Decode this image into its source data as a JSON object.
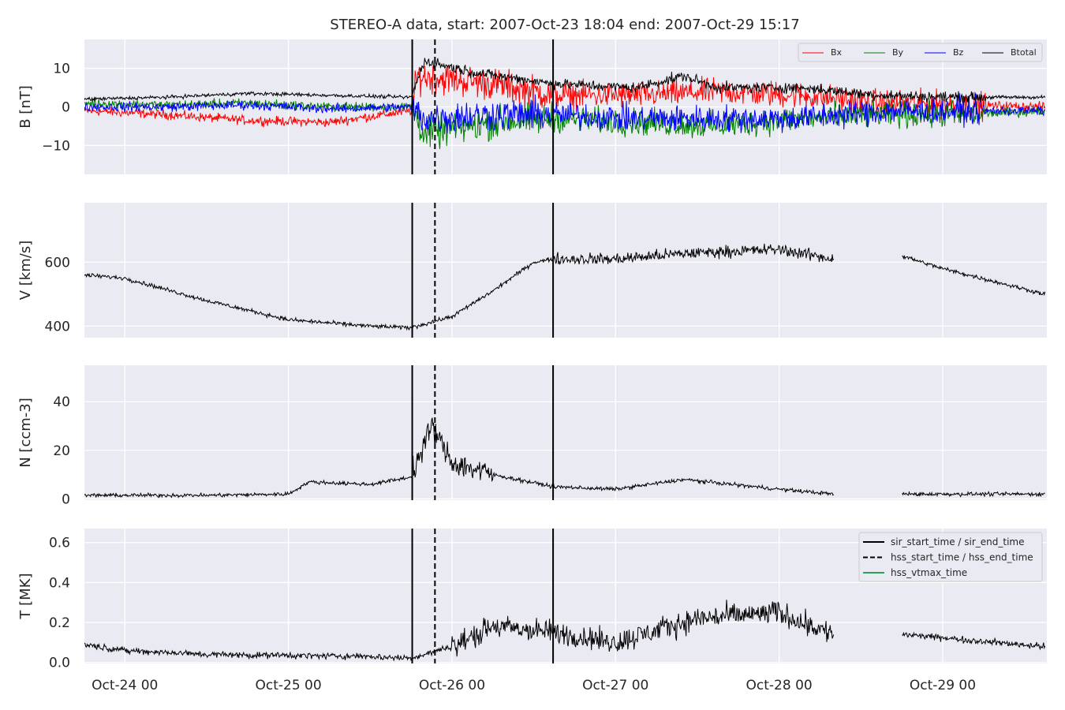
{
  "figure": {
    "title": "STEREO-A data, start: 2007-Oct-23 18:04  end: 2007-Oct-29 15:17",
    "x_tick_labels": [
      "Oct-24 00",
      "Oct-25 00",
      "Oct-26 00",
      "Oct-27 00",
      "Oct-28 00",
      "Oct-29 00"
    ]
  },
  "legend_b": [
    "Bx",
    "By",
    "Bz",
    "Btotal"
  ],
  "legend_events": [
    "sir_start_time / sir_end_time",
    "hss_start_time / hss_end_time",
    "hss_vtmax_time"
  ],
  "colors": {
    "bx": "#ff0000",
    "by": "#008000",
    "bz": "#0000ff",
    "btotal": "#000000",
    "vtmax": "#2ca05a",
    "panel_bg": "#eaeaf2",
    "grid": "#ffffff"
  },
  "chart_data": [
    {
      "type": "line",
      "panel": "B",
      "ylabel": "B [nT]",
      "y_ticks": [
        "10",
        "0",
        "−10"
      ],
      "ylim": [
        -17.5,
        17.5
      ],
      "x_range_days": [
        "2007-10-23 18:04",
        "2007-10-29 15:17"
      ],
      "grid": true,
      "legend_position": "top-right",
      "series": [
        {
          "name": "Bx",
          "x": [
            "2007-10-23 18:00",
            "2007-10-24 06:00",
            "2007-10-24 18:00",
            "2007-10-25 06:00",
            "2007-10-25 18:00",
            "2007-10-25 19:00",
            "2007-10-26 06:00",
            "2007-10-26 15:00",
            "2007-10-27 03:00",
            "2007-10-27 15:00",
            "2007-10-28 03:00",
            "2007-10-28 15:00",
            "2007-10-29 03:00",
            "2007-10-29 15:00"
          ],
          "y": [
            -1,
            -2,
            -3.5,
            -4,
            -1,
            8,
            6,
            3,
            3,
            4,
            3,
            1,
            0.5,
            0
          ]
        },
        {
          "name": "By",
          "x": [
            "2007-10-23 18:00",
            "2007-10-24 06:00",
            "2007-10-24 18:00",
            "2007-10-25 06:00",
            "2007-10-25 18:00",
            "2007-10-25 20:00",
            "2007-10-26 06:00",
            "2007-10-26 15:00",
            "2007-10-27 03:00",
            "2007-10-27 15:00",
            "2007-10-28 03:00",
            "2007-10-28 15:00",
            "2007-10-29 03:00",
            "2007-10-29 15:00"
          ],
          "y": [
            1,
            0.5,
            1,
            0,
            0,
            -7,
            -4,
            -3,
            -4,
            -5,
            -3,
            -2,
            -2,
            -1
          ]
        },
        {
          "name": "Bz",
          "x": [
            "2007-10-23 18:00",
            "2007-10-24 06:00",
            "2007-10-24 18:00",
            "2007-10-25 06:00",
            "2007-10-25 18:00",
            "2007-10-25 20:00",
            "2007-10-26 06:00",
            "2007-10-26 15:00",
            "2007-10-27 03:00",
            "2007-10-27 15:00",
            "2007-10-28 03:00",
            "2007-10-28 15:00",
            "2007-10-29 03:00",
            "2007-10-29 15:00"
          ],
          "y": [
            0,
            0,
            0.5,
            -0.5,
            0,
            -3,
            -2,
            -2,
            -3,
            -3,
            -3,
            -1,
            -1,
            -1
          ]
        },
        {
          "name": "Btotal",
          "x": [
            "2007-10-23 18:00",
            "2007-10-24 06:00",
            "2007-10-24 18:00",
            "2007-10-25 06:00",
            "2007-10-25 18:00",
            "2007-10-25 20:00",
            "2007-10-26 03:00",
            "2007-10-26 15:00",
            "2007-10-27 03:00",
            "2007-10-27 10:00",
            "2007-10-27 15:00",
            "2007-10-28 03:00",
            "2007-10-28 15:00",
            "2007-10-29 03:00",
            "2007-10-29 15:00"
          ],
          "y": [
            2,
            2.5,
            3.5,
            3,
            2.5,
            12,
            9,
            6,
            5,
            8,
            5,
            5,
            3,
            2.5,
            2.5
          ]
        }
      ]
    },
    {
      "type": "line",
      "panel": "V",
      "ylabel": "V [km/s]",
      "y_ticks": [
        "600",
        "400"
      ],
      "ylim": [
        364,
        786
      ],
      "grid": true,
      "series": [
        {
          "name": "",
          "x": [
            "2007-10-23 18:04",
            "2007-10-24 00:00",
            "2007-10-24 12:00",
            "2007-10-25 00:00",
            "2007-10-25 12:00",
            "2007-10-25 18:00",
            "2007-10-26 00:00",
            "2007-10-26 06:00",
            "2007-10-26 12:00",
            "2007-10-26 15:00",
            "2007-10-27 00:00",
            "2007-10-27 12:00",
            "2007-10-28 00:00",
            "2007-10-28 08:00",
            "2007-10-28 18:00",
            "2007-10-29 00:00",
            "2007-10-29 15:00"
          ],
          "y": [
            560,
            550,
            480,
            420,
            400,
            395,
            430,
            510,
            600,
            610,
            610,
            630,
            640,
            610,
            620,
            580,
            500
          ]
        }
      ],
      "gaps": [
        [
          "2007-10-28 08:00",
          "2007-10-28 18:00"
        ]
      ]
    },
    {
      "type": "line",
      "panel": "N",
      "ylabel": "N [ccm-3]",
      "y_ticks": [
        "40",
        "20",
        "0"
      ],
      "ylim": [
        -0.5,
        55
      ],
      "grid": true,
      "series": [
        {
          "name": "",
          "x": [
            "2007-10-23 18:04",
            "2007-10-24 12:00",
            "2007-10-25 00:00",
            "2007-10-25 03:00",
            "2007-10-25 12:00",
            "2007-10-25 18:00",
            "2007-10-25 21:00",
            "2007-10-26 00:00",
            "2007-10-26 06:00",
            "2007-10-26 15:00",
            "2007-10-27 00:00",
            "2007-10-27 10:00",
            "2007-10-28 00:00",
            "2007-10-28 08:00",
            "2007-10-28 18:00",
            "2007-10-29 15:00"
          ],
          "y": [
            1.5,
            1.5,
            2,
            7,
            6,
            9,
            30,
            15,
            10,
            5,
            4,
            8,
            4,
            2,
            2,
            2
          ]
        }
      ],
      "gaps": [
        [
          "2007-10-28 08:00",
          "2007-10-28 18:00"
        ]
      ]
    },
    {
      "type": "line",
      "panel": "T",
      "ylabel": "T [MK]",
      "y_ticks": [
        "0.6",
        "0.4",
        "0.2",
        "0.0"
      ],
      "ylim": [
        -0.005,
        0.67
      ],
      "grid": true,
      "legend_position": "top-right",
      "series": [
        {
          "name": "",
          "x": [
            "2007-10-23 18:04",
            "2007-10-24 00:00",
            "2007-10-24 12:00",
            "2007-10-25 12:00",
            "2007-10-25 18:00",
            "2007-10-26 00:00",
            "2007-10-26 06:00",
            "2007-10-26 15:00",
            "2007-10-27 00:00",
            "2007-10-27 12:00",
            "2007-10-28 00:00",
            "2007-10-28 08:00",
            "2007-10-28 18:00",
            "2007-10-29 15:00"
          ],
          "y": [
            0.09,
            0.06,
            0.04,
            0.03,
            0.02,
            0.08,
            0.18,
            0.15,
            0.1,
            0.22,
            0.25,
            0.14,
            0.14,
            0.08
          ]
        }
      ],
      "gaps": [
        [
          "2007-10-28 08:00",
          "2007-10-28 18:00"
        ]
      ]
    }
  ],
  "event_lines": [
    {
      "name": "sir_start_time / sir_end_time",
      "style": "solid",
      "times": [
        "2007-10-25 18:10",
        "2007-10-26 14:50"
      ]
    },
    {
      "name": "hss_start_time / hss_end_time",
      "style": "dashed",
      "times": [
        "2007-10-25 21:30"
      ]
    }
  ]
}
